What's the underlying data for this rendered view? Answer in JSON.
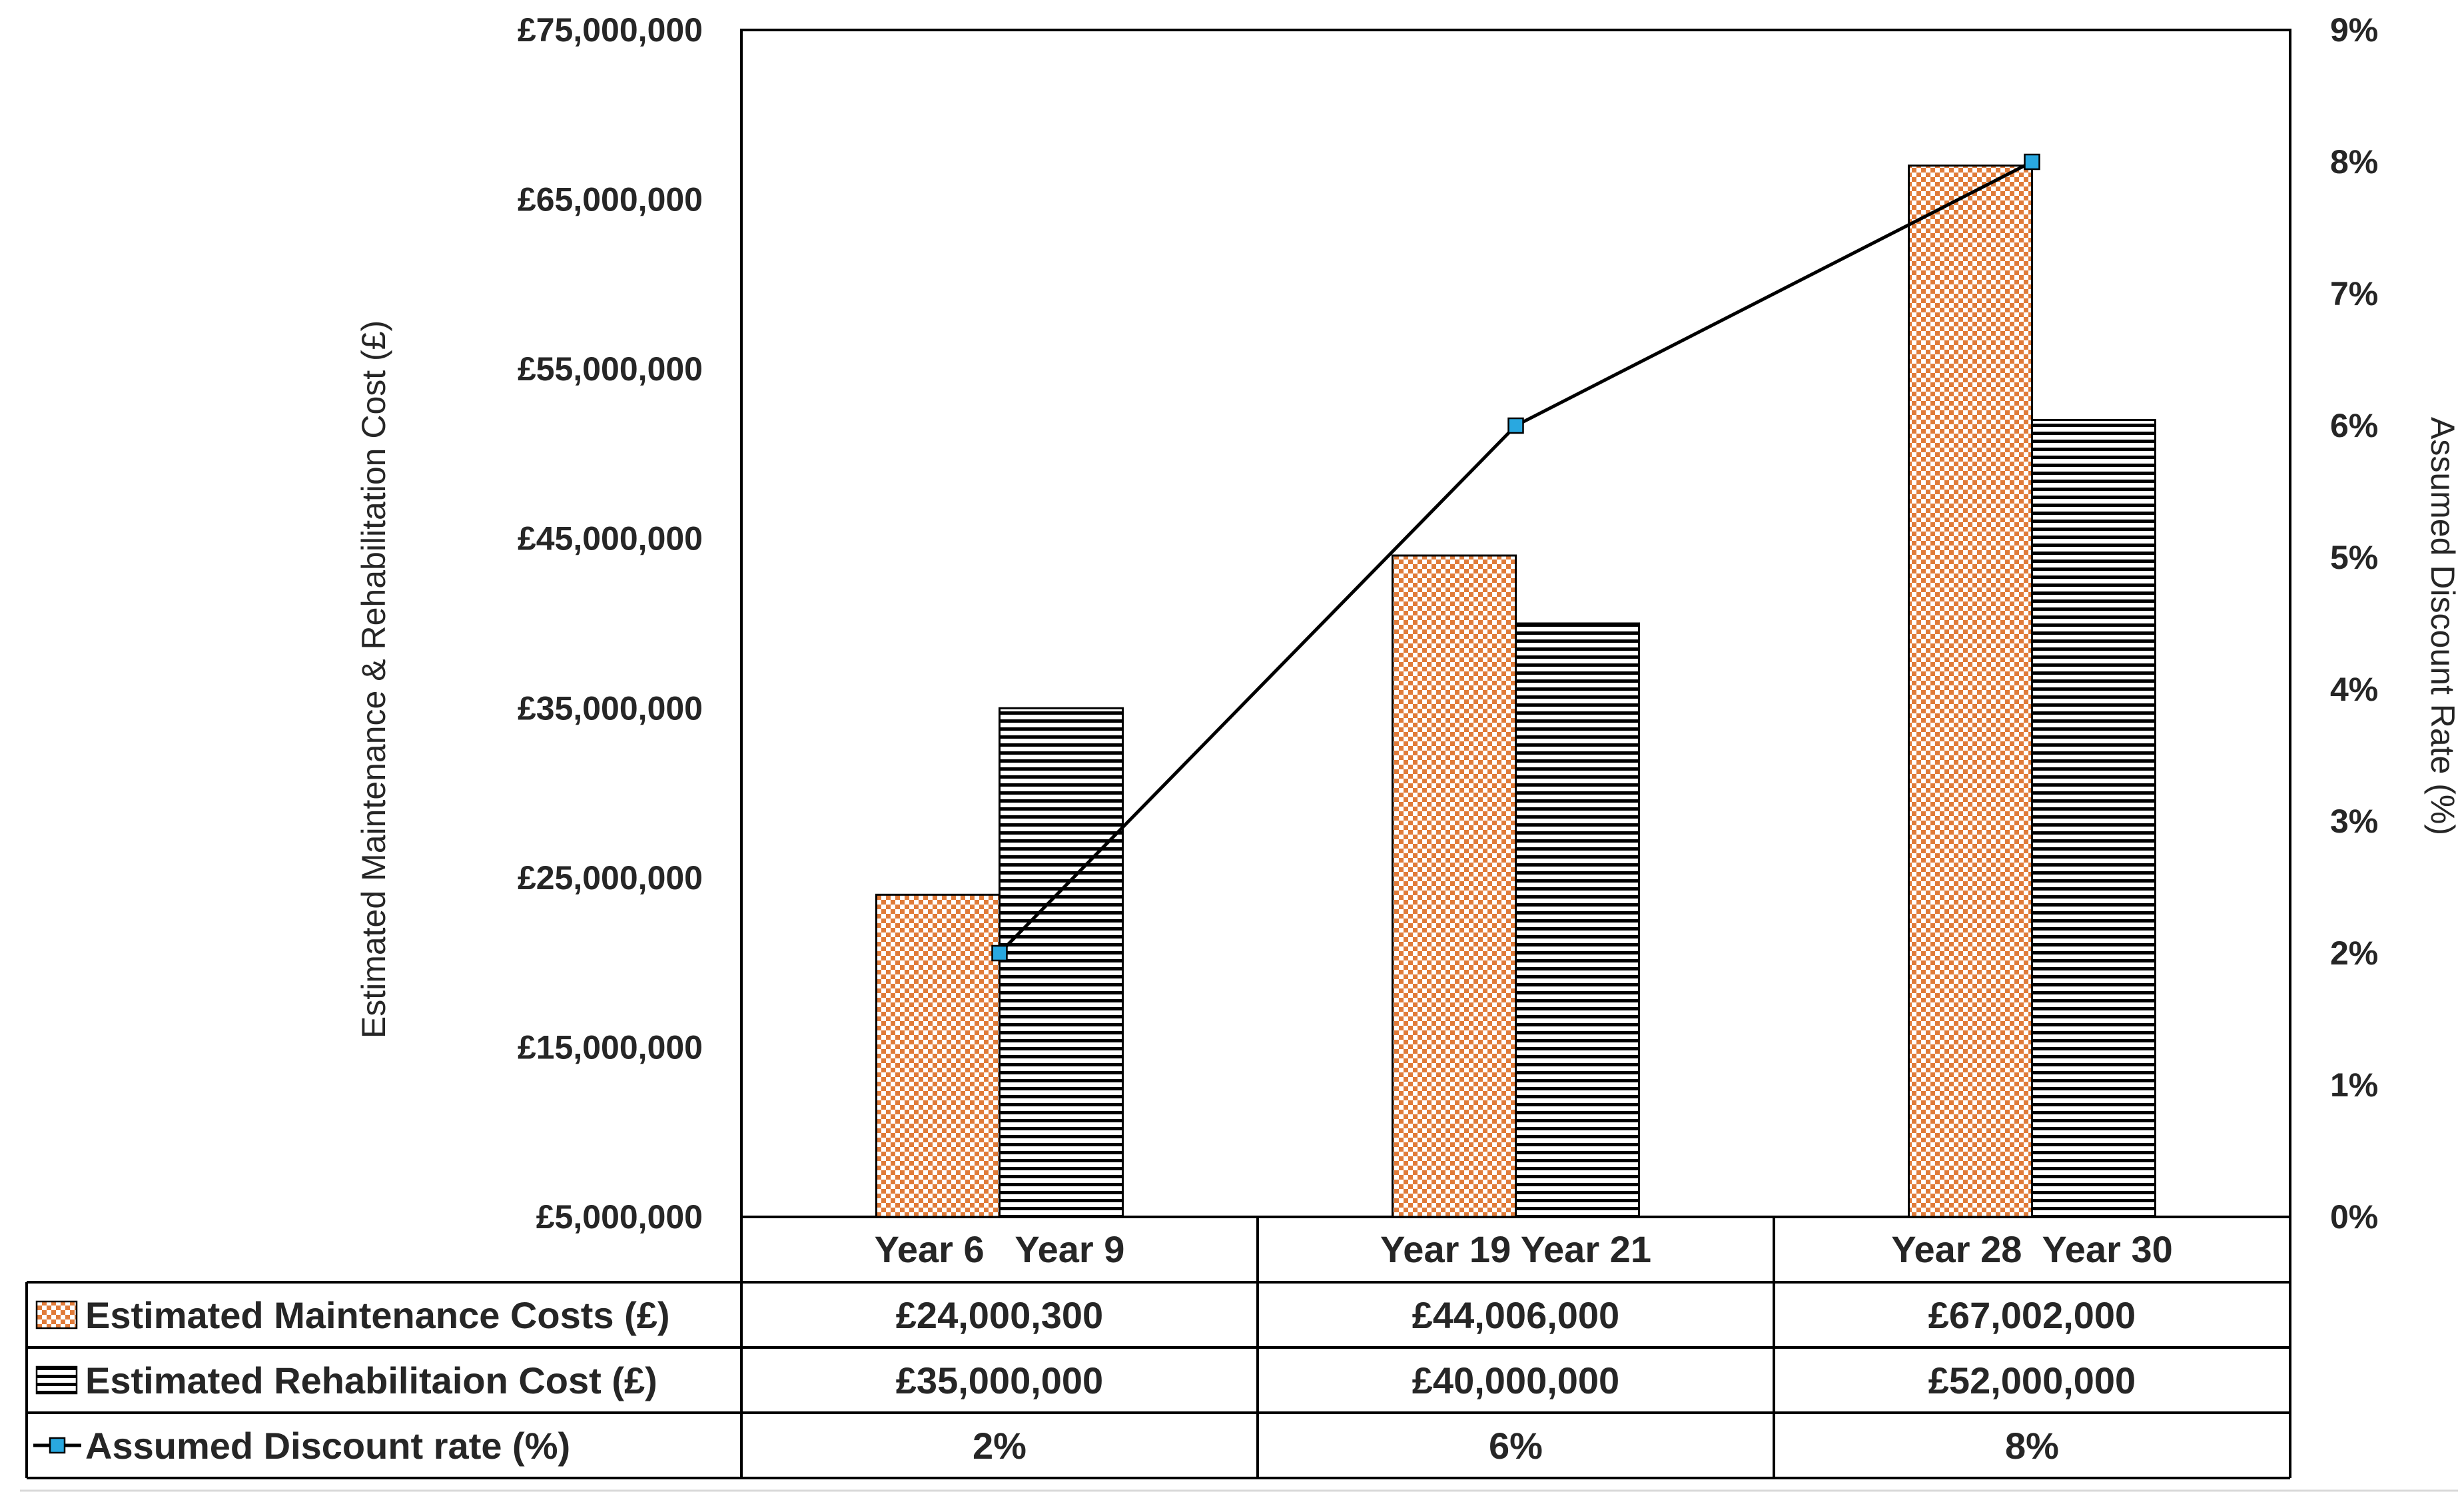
{
  "chart_data": {
    "type": "bar",
    "categories": [
      "Year 6   Year 9",
      "Year 19 Year 21",
      "Year 28  Year 30"
    ],
    "series": [
      {
        "name": "Estimated Maintenance Costs (£)",
        "kind": "bar",
        "axis": "left",
        "pattern": "checker-orange",
        "color": "#E07B39",
        "values": [
          24000300,
          44006000,
          67002000
        ],
        "table_values": [
          "£24,000,300",
          "£44,006,000",
          "£67,002,000"
        ]
      },
      {
        "name": "Estimated Rehabilitaion Cost (£)",
        "kind": "bar",
        "axis": "left",
        "pattern": "horizontal-stripes-black",
        "color": "#000000",
        "values": [
          35000000,
          40000000,
          52000000
        ],
        "table_values": [
          "£35,000,000",
          "£40,000,000",
          "£52,000,000"
        ]
      },
      {
        "name": "Assumed Discount rate (%)",
        "kind": "line",
        "axis": "right",
        "marker": "square",
        "marker_color": "#29A8E0",
        "color": "#000000",
        "values": [
          2,
          6,
          8
        ],
        "table_values": [
          "2%",
          "6%",
          "8%"
        ]
      }
    ],
    "y_left": {
      "label": "Estimated Maintenance & Rehabilitation Cost (£)",
      "range": [
        5000000,
        75000000
      ],
      "ticks": [
        "£75,000,000",
        "£65,000,000",
        "£55,000,000",
        "£45,000,000",
        "£35,000,000",
        "£25,000,000",
        "£15,000,000",
        "£5,000,000"
      ],
      "tick_values": [
        75000000,
        65000000,
        55000000,
        45000000,
        35000000,
        25000000,
        15000000,
        5000000
      ]
    },
    "y_right": {
      "label": "Assumed Discount Rate (%)",
      "range": [
        0,
        9
      ],
      "ticks": [
        "9%",
        "8%",
        "7%",
        "6%",
        "5%",
        "4%",
        "3%",
        "2%",
        "1%",
        "0%"
      ],
      "tick_values": [
        9,
        8,
        7,
        6,
        5,
        4,
        3,
        2,
        1,
        0
      ]
    },
    "data_table": true,
    "legend": "data-table"
  }
}
